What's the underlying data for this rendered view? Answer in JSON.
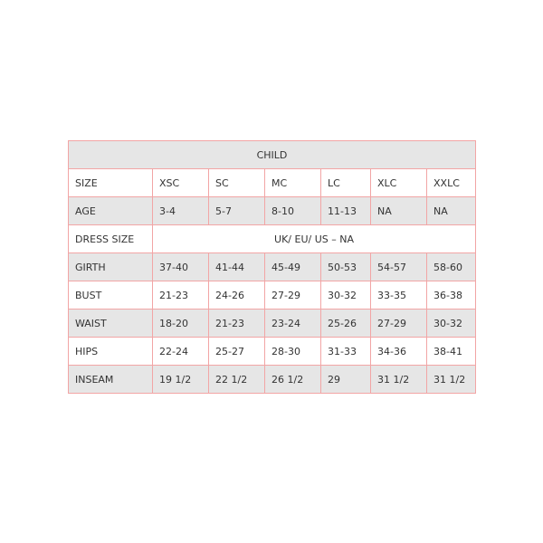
{
  "title": "CHILD",
  "header_row": {
    "label": "SIZE",
    "sizes": [
      "XSC",
      "SC",
      "MC",
      "LC",
      "XLC",
      "XXLC"
    ]
  },
  "rows": [
    {
      "label": "AGE",
      "values": [
        "3-4",
        "5-7",
        "8-10",
        "11-13",
        "NA",
        "NA"
      ]
    },
    {
      "label": "DRESS SIZE",
      "merged": "UK/ EU/ US – NA"
    },
    {
      "label": "GIRTH",
      "values": [
        "37-40",
        "41-44",
        "45-49",
        "50-53",
        "54-57",
        "58-60"
      ]
    },
    {
      "label": "BUST",
      "values": [
        "21-23",
        "24-26",
        "27-29",
        "30-32",
        "33-35",
        "36-38"
      ]
    },
    {
      "label": "WAIST",
      "values": [
        "18-20",
        "21-23",
        "23-24",
        "25-26",
        "27-29",
        "30-32"
      ]
    },
    {
      "label": "HIPS",
      "values": [
        "22-24",
        "25-27",
        "28-30",
        "31-33",
        "34-36",
        "38-41"
      ]
    },
    {
      "label": "INSEAM",
      "values": [
        "19 1/2",
        "22 1/2",
        "26 1/2",
        "29",
        "31 1/2",
        "31 1/2"
      ]
    }
  ],
  "colors": {
    "border": "#f2a5a5",
    "stripe": "#e6e6e6"
  }
}
